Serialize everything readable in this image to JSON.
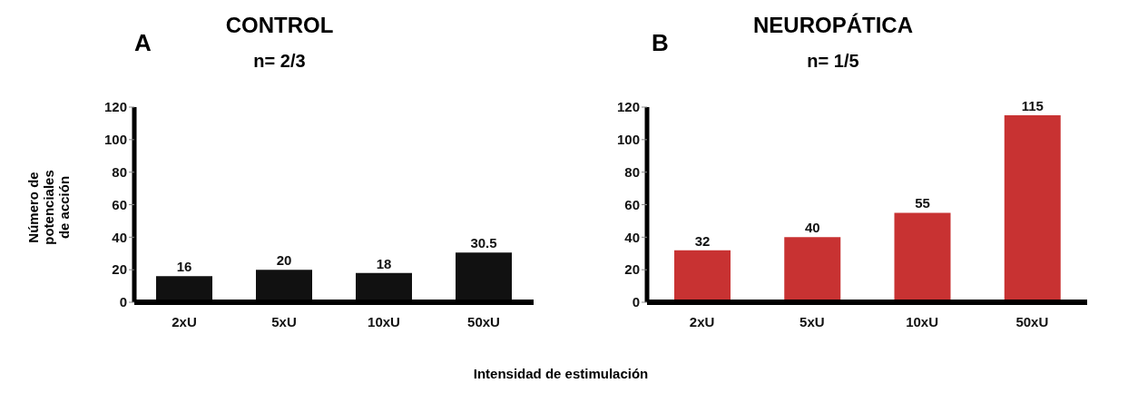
{
  "chart_data": [
    {
      "type": "bar",
      "title": "CONTROL",
      "subtitle": "n= 2/3",
      "annotations": [
        "A"
      ],
      "ylabel": "Número de potenciales de acción",
      "xlabel": "Intensidad de estimulación",
      "categories": [
        "2xU",
        "5xU",
        "10xU",
        "50xU"
      ],
      "values": [
        16,
        20,
        18,
        30.5
      ],
      "color": "#111111",
      "ylim": [
        0,
        120
      ],
      "yticks": [
        0,
        20,
        40,
        60,
        80,
        100,
        120
      ],
      "data_labels": true,
      "grid": false,
      "legend": false
    },
    {
      "type": "bar",
      "title": "NEUROPÁTICA",
      "subtitle": "n= 1/5",
      "annotations": [
        "B"
      ],
      "categories": [
        "2xU",
        "5xU",
        "10xU",
        "50xU"
      ],
      "values": [
        32,
        40,
        55,
        115
      ],
      "color": "#c83232",
      "ylim": [
        0,
        120
      ],
      "yticks": [
        0,
        20,
        40,
        60,
        80,
        100,
        120
      ],
      "data_labels": true,
      "grid": false,
      "legend": false
    }
  ]
}
